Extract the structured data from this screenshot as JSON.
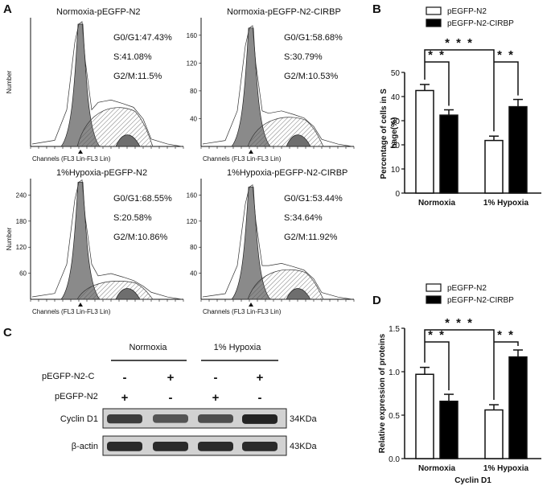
{
  "panel_letters": {
    "a": "A",
    "b": "B",
    "c": "C",
    "d": "D"
  },
  "panel_a": {
    "y_axis_label": "Number",
    "x_axis_label": "Channels (FL3 Lin-FL3 Lin)",
    "histograms": [
      {
        "title": "Normoxia-pEGFP-N2",
        "g0g1": "G0/G1:47.43%",
        "s": "S:41.08%",
        "g2m": "G2/M:11.5%",
        "yticks": []
      },
      {
        "title": "Normoxia-pEGFP-N2-CIRBP",
        "g0g1": "G0/G1:58.68%",
        "s": "S:30.79%",
        "g2m": "G2/M:10.53%",
        "yticks": [
          "160",
          "120",
          "80",
          "40"
        ]
      },
      {
        "title": "1%Hypoxia-pEGFP-N2",
        "g0g1": "G0/G1:68.55%",
        "s": "S:20.58%",
        "g2m": "G2/M:10.86%",
        "yticks": [
          "240",
          "180",
          "120",
          "60"
        ]
      },
      {
        "title": "1%Hypoxia-pEGFP-N2-CIRBP",
        "g0g1": "G0/G1:53.44%",
        "s": "S:34.64%",
        "g2m": "G2/M:11.92%",
        "yticks": [
          "160",
          "120",
          "80",
          "40"
        ]
      }
    ]
  },
  "panel_b": {
    "chart_data": {
      "type": "bar",
      "categories": [
        "Normoxia",
        "1% Hypoxia"
      ],
      "series": [
        {
          "name": "pEGFP-N2",
          "values": [
            42.5,
            21.8
          ],
          "errors": [
            2.5,
            1.8
          ],
          "color": "#ffffff"
        },
        {
          "name": "pEGFP-N2-CIRBP",
          "values": [
            32.3,
            35.8
          ],
          "errors": [
            2.2,
            3.0
          ],
          "color": "#000000"
        }
      ],
      "xlabel": "",
      "ylabel": "Percentage of cells in S phage(%)",
      "ylim": [
        0,
        50
      ],
      "yticks": [
        "0",
        "10",
        "20",
        "30",
        "40",
        "50"
      ],
      "significance": [
        "* * *",
        "* *",
        "* *"
      ]
    }
  },
  "panel_d": {
    "chart_data": {
      "type": "bar",
      "categories": [
        "Normoxia",
        "1% Hypoxia"
      ],
      "series": [
        {
          "name": "pEGFP-N2",
          "values": [
            0.97,
            0.56
          ],
          "errors": [
            0.08,
            0.06
          ],
          "color": "#ffffff"
        },
        {
          "name": "pEGFP-N2-CIRBP",
          "values": [
            0.66,
            1.17
          ],
          "errors": [
            0.08,
            0.08
          ],
          "color": "#000000"
        }
      ],
      "xlabel": "Cyclin D1",
      "ylabel": "Relative expression of proteins",
      "ylim": [
        0,
        1.5
      ],
      "yticks": [
        "0.0",
        "0.5",
        "1.0",
        "1.5"
      ],
      "significance": [
        "* * *",
        "* *",
        "* *"
      ]
    }
  },
  "panel_c": {
    "group_labels": [
      "Normoxia",
      "1% Hypoxia"
    ],
    "row_labels": [
      "pEGFP-N2-C",
      "pEGFP-N2"
    ],
    "row1_signs": [
      "-",
      "+",
      "-",
      "+"
    ],
    "row2_signs": [
      "+",
      "-",
      "+",
      "-"
    ],
    "blots": [
      {
        "label": "Cyclin D1",
        "size": "34KDa",
        "intensity": [
          0.75,
          0.55,
          0.6,
          0.95
        ]
      },
      {
        "label": "β-actin",
        "size": "43KDa",
        "intensity": [
          0.9,
          0.9,
          0.9,
          0.9
        ]
      }
    ]
  }
}
